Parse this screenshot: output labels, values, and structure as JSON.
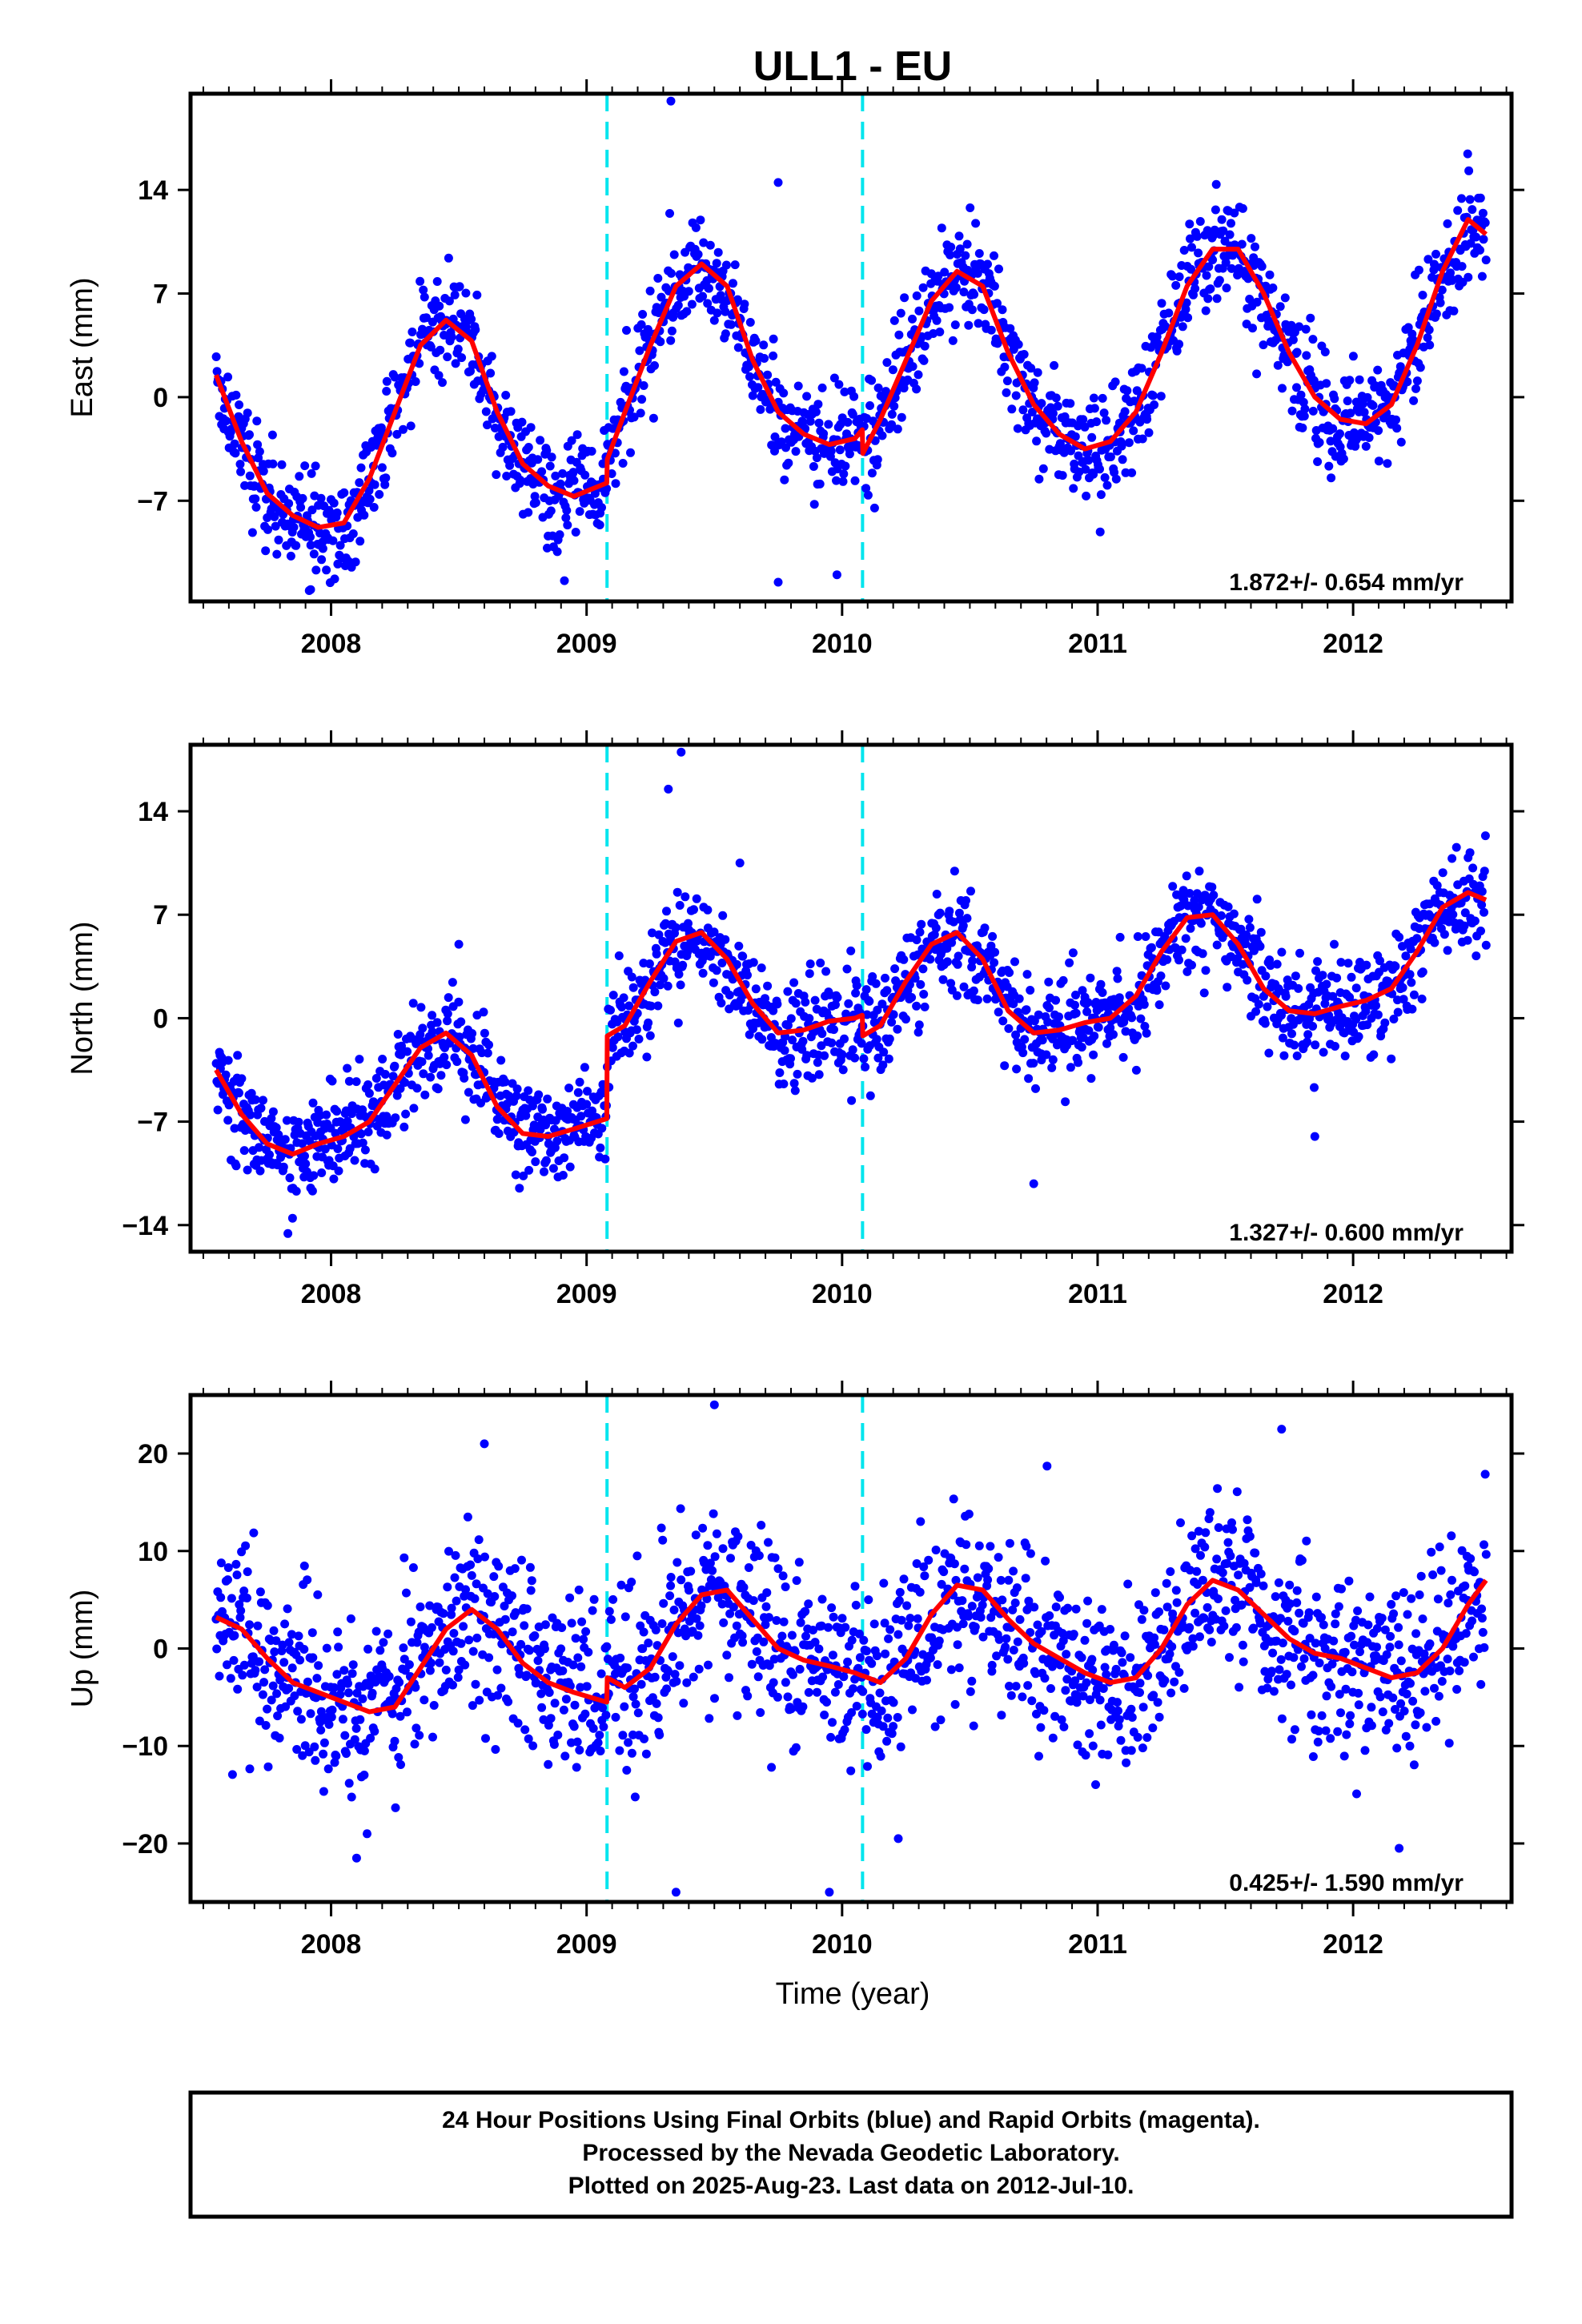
{
  "chart_data": {
    "type": "scatter",
    "title": "ULL1 - EU",
    "xlabel": "Time (year)",
    "xlim": [
      2007.45,
      2012.62
    ],
    "x_ticks": [
      2008,
      2009,
      2010,
      2011,
      2012
    ],
    "x_tick_labels": [
      "2008",
      "2009",
      "2010",
      "2011",
      "2012"
    ],
    "data_start": 2007.55,
    "data_end": 2012.52,
    "breaks": [
      2009.08,
      2010.08
    ],
    "colors": {
      "points": "#0000ff",
      "model": "#ff0000",
      "breaks": "#00e5ee",
      "frame": "#000000"
    },
    "panels": [
      {
        "name": "east",
        "ylabel": "East (mm)",
        "ylim": [
          -13.8,
          20.5
        ],
        "y_ticks": [
          -7,
          0,
          7,
          14
        ],
        "y_tick_labels": [
          "−7",
          "0",
          "7",
          "14"
        ],
        "rate_label": "1.872+/- 0.654 mm/yr",
        "model": {
          "x": [
            2007.55,
            2007.65,
            2007.75,
            2007.85,
            2007.95,
            2008.05,
            2008.15,
            2008.25,
            2008.35,
            2008.45,
            2008.55,
            2008.65,
            2008.75,
            2008.85,
            2008.95,
            2009.079,
            2009.081,
            2009.15,
            2009.25,
            2009.35,
            2009.45,
            2009.55,
            2009.65,
            2009.75,
            2009.85,
            2009.95,
            2010.05,
            2010.079,
            2010.081,
            2010.15,
            2010.25,
            2010.35,
            2010.45,
            2010.55,
            2010.65,
            2010.75,
            2010.85,
            2010.95,
            2011.05,
            2011.15,
            2011.25,
            2011.35,
            2011.45,
            2011.55,
            2011.65,
            2011.75,
            2011.85,
            2011.95,
            2012.05,
            2012.15,
            2012.25,
            2012.35,
            2012.45,
            2012.52
          ],
          "y": [
            1.5,
            -3,
            -6.5,
            -8,
            -8.8,
            -8.5,
            -5.5,
            -1,
            3.5,
            5.2,
            3.8,
            -1,
            -4.5,
            -6,
            -6.7,
            -5.8,
            -4.2,
            -1,
            3.5,
            7.5,
            9,
            7.5,
            2.5,
            -1,
            -2.5,
            -3.2,
            -2.8,
            -2.2,
            -3.8,
            -1.5,
            2.5,
            6.5,
            8.5,
            7.5,
            3,
            -0.5,
            -2.5,
            -3.5,
            -3,
            -1,
            3,
            7.5,
            10,
            10,
            7,
            3,
            0,
            -1.5,
            -1.8,
            -0.5,
            3.5,
            8.5,
            12,
            11
          ]
        },
        "points_seed": 11,
        "noise": 1.8,
        "outliers": [
          [
            2009.33,
            20
          ],
          [
            2009.75,
            14.5
          ],
          [
            2009.75,
            -12.5
          ],
          [
            2009.98,
            -12
          ],
          [
            2007.92,
            -13
          ]
        ]
      },
      {
        "name": "north",
        "ylabel": "North (mm)",
        "ylim": [
          -15.8,
          18.5
        ],
        "y_ticks": [
          -14,
          -7,
          0,
          7,
          14
        ],
        "y_tick_labels": [
          "−14",
          "−7",
          "0",
          "7",
          "14"
        ],
        "rate_label": "1.327+/- 0.600 mm/yr",
        "model": {
          "x": [
            2007.55,
            2007.65,
            2007.75,
            2007.85,
            2007.95,
            2008.05,
            2008.15,
            2008.25,
            2008.35,
            2008.45,
            2008.55,
            2008.65,
            2008.75,
            2008.85,
            2008.95,
            2009.079,
            2009.081,
            2009.15,
            2009.25,
            2009.35,
            2009.45,
            2009.55,
            2009.65,
            2009.75,
            2009.85,
            2009.95,
            2010.05,
            2010.079,
            2010.081,
            2010.15,
            2010.25,
            2010.35,
            2010.45,
            2010.55,
            2010.65,
            2010.75,
            2010.85,
            2010.95,
            2011.05,
            2011.15,
            2011.25,
            2011.35,
            2011.45,
            2011.55,
            2011.65,
            2011.75,
            2011.85,
            2011.95,
            2012.05,
            2012.15,
            2012.25,
            2012.35,
            2012.45,
            2012.52
          ],
          "y": [
            -3.5,
            -6.5,
            -8.5,
            -9.2,
            -8.5,
            -8,
            -7,
            -4.5,
            -2,
            -1,
            -2.5,
            -6,
            -7.8,
            -8,
            -7.5,
            -6.8,
            -1.2,
            -0.5,
            2.5,
            5.2,
            5.8,
            4,
            1,
            -1,
            -0.8,
            -0.2,
            0,
            0.2,
            -1.2,
            -0.5,
            2.5,
            5,
            5.8,
            4,
            0.5,
            -1,
            -0.8,
            -0.3,
            0,
            1.5,
            4.5,
            6.8,
            7,
            5,
            2,
            0.5,
            0.3,
            0.8,
            1.2,
            2,
            4.5,
            7.5,
            8.5,
            8
          ]
        },
        "points_seed": 23,
        "noise": 1.7,
        "outliers": [
          [
            2009.32,
            15.5
          ],
          [
            2009.37,
            18
          ],
          [
            2009.6,
            10.5
          ],
          [
            2010.75,
            -11.2
          ],
          [
            2011.85,
            -8
          ],
          [
            2008.5,
            5
          ]
        ]
      },
      {
        "name": "up",
        "ylabel": "Up (mm)",
        "ylim": [
          -26,
          26
        ],
        "y_ticks": [
          -20,
          -10,
          0,
          10,
          20
        ],
        "y_tick_labels": [
          "−20",
          "−10",
          "0",
          "10",
          "20"
        ],
        "rate_label": "0.425+/- 1.590 mm/yr",
        "model": {
          "x": [
            2007.55,
            2007.65,
            2007.75,
            2007.85,
            2007.95,
            2008.05,
            2008.15,
            2008.25,
            2008.35,
            2008.45,
            2008.55,
            2008.65,
            2008.75,
            2008.85,
            2008.95,
            2009.079,
            2009.081,
            2009.15,
            2009.25,
            2009.35,
            2009.45,
            2009.55,
            2009.65,
            2009.75,
            2009.85,
            2009.95,
            2010.05,
            2010.079,
            2010.081,
            2010.15,
            2010.25,
            2010.35,
            2010.45,
            2010.55,
            2010.65,
            2010.75,
            2010.85,
            2010.95,
            2011.05,
            2011.15,
            2011.25,
            2011.35,
            2011.45,
            2011.55,
            2011.65,
            2011.75,
            2011.85,
            2011.95,
            2012.05,
            2012.15,
            2012.25,
            2012.35,
            2012.45,
            2012.52
          ],
          "y": [
            3.2,
            2,
            -1,
            -3.5,
            -4.5,
            -5.5,
            -6.5,
            -6,
            -2,
            2,
            4,
            2,
            -1.5,
            -3.5,
            -4.5,
            -5.5,
            -3,
            -4,
            -2,
            2.5,
            5.5,
            6,
            3,
            0,
            -1.2,
            -1.8,
            -2.5,
            -2.8,
            -2.8,
            -3.5,
            -1,
            3.5,
            6.5,
            6,
            3,
            0.5,
            -1,
            -2.5,
            -3.5,
            -3,
            0,
            4.5,
            7,
            6,
            3.5,
            1,
            -0.5,
            -1,
            -2,
            -3,
            -2.5,
            0,
            4.5,
            7
          ]
        },
        "points_seed": 37,
        "noise": 4.6,
        "outliers": [
          [
            2009.5,
            25
          ],
          [
            2009.35,
            -25
          ],
          [
            2009.95,
            -25
          ],
          [
            2008.1,
            -21.5
          ],
          [
            2012.18,
            -20.5
          ],
          [
            2010.22,
            -19.5
          ],
          [
            2008.6,
            21
          ],
          [
            2011.72,
            22.5
          ]
        ]
      }
    ]
  },
  "footer": {
    "line1": "24 Hour Positions Using Final Orbits (blue) and Rapid Orbits (magenta).",
    "line2": "Processed by the Nevada Geodetic Laboratory.",
    "line3": "Plotted on 2025-Aug-23. Last data on 2012-Jul-10."
  }
}
